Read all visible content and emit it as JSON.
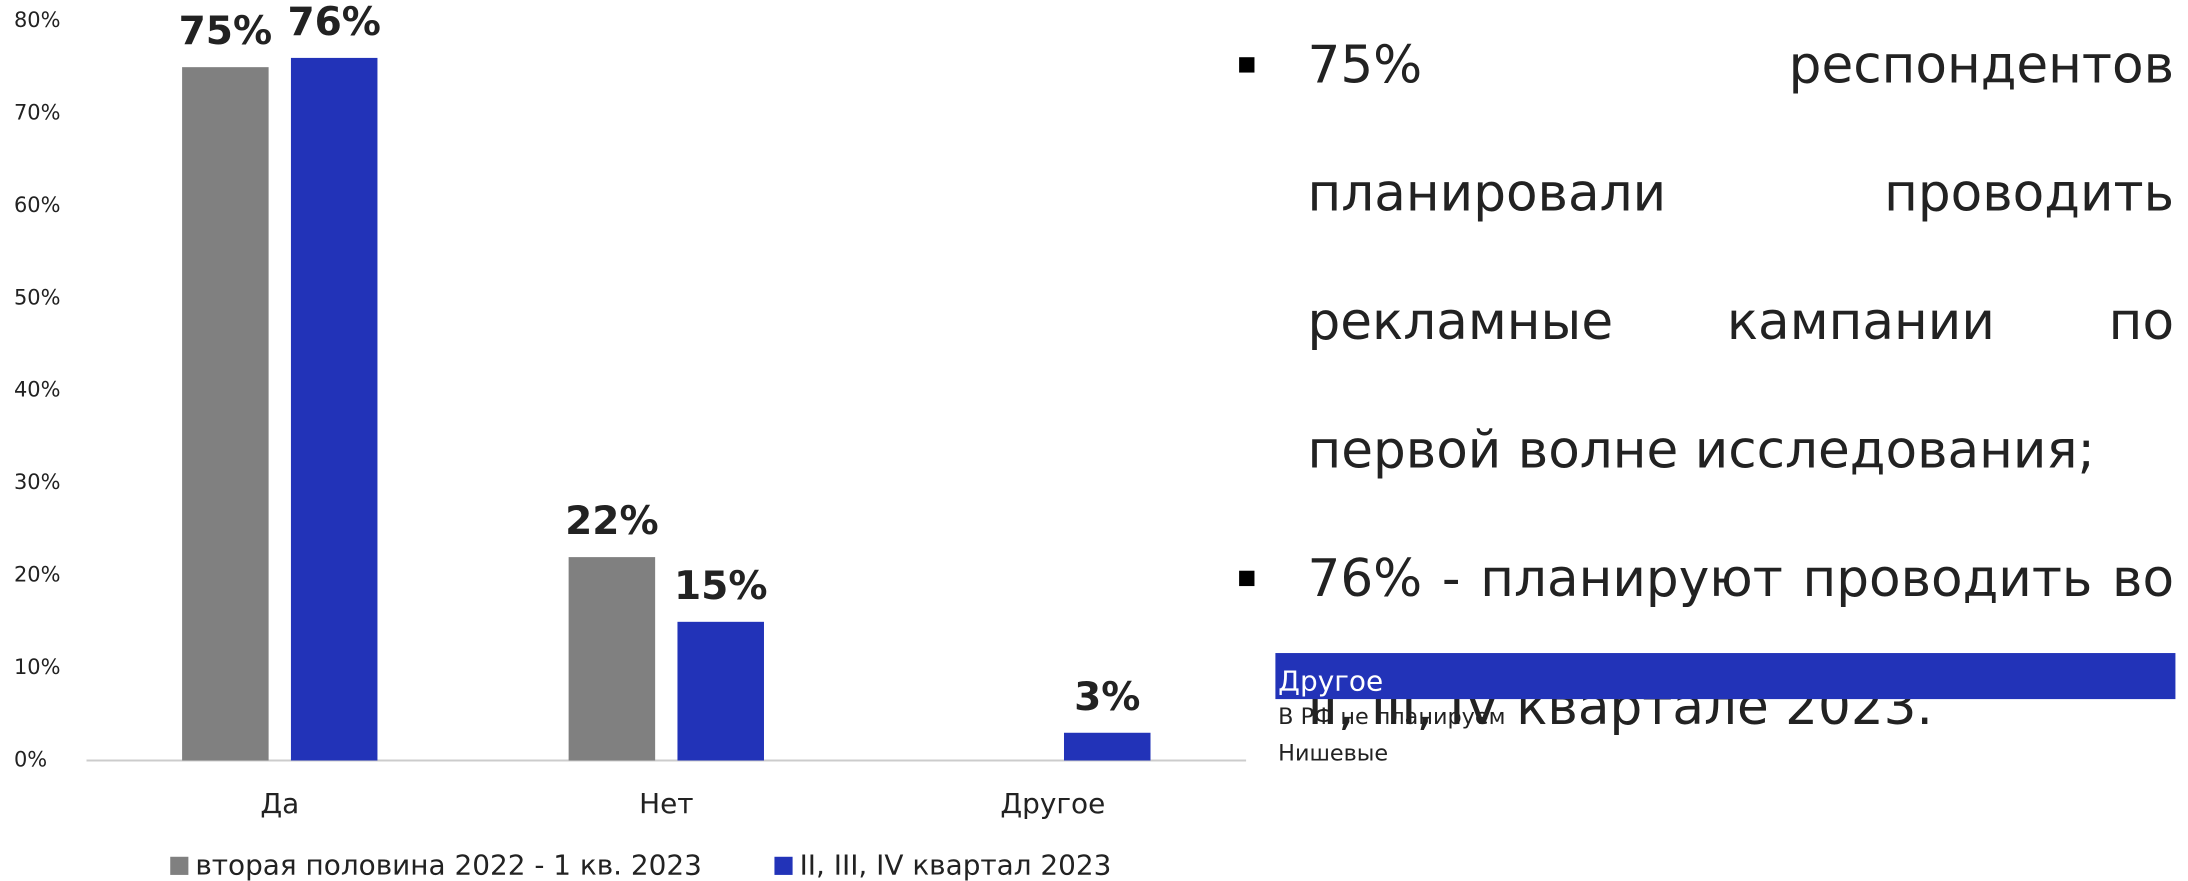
{
  "chart_data": {
    "type": "bar",
    "categories": [
      "Да",
      "Нет",
      "Другое"
    ],
    "series": [
      {
        "name": "вторая половина 2022 - 1 кв. 2023",
        "color": "#808080",
        "values": [
          75,
          22,
          null
        ],
        "value_labels": [
          "75%",
          "22%",
          null
        ]
      },
      {
        "name": "II, III, IV квартал 2023",
        "color": "#2233b8",
        "values": [
          76,
          15,
          3
        ],
        "value_labels": [
          "76%",
          "15%",
          "3%"
        ]
      }
    ],
    "ylim": [
      0,
      80
    ],
    "yticks": [
      {
        "value": 0,
        "label": "0%"
      },
      {
        "value": 10,
        "label": "10%"
      },
      {
        "value": 20,
        "label": "20%"
      },
      {
        "value": 30,
        "label": "30%"
      },
      {
        "value": 40,
        "label": "40%"
      },
      {
        "value": 50,
        "label": "50%"
      },
      {
        "value": 60,
        "label": "60%"
      },
      {
        "value": 70,
        "label": "70%"
      },
      {
        "value": 80,
        "label": "80%"
      }
    ],
    "grid": false,
    "legend": "bottom"
  },
  "bullets": [
    "75% респондентов планировали проводить рекламные кампании по первой волне исследования;",
    "76% - планируют проводить во II, III, IV квартале 2023."
  ],
  "list": {
    "header": "Другое",
    "items": [
      "В РФ не планируем",
      "Нишевые"
    ]
  }
}
